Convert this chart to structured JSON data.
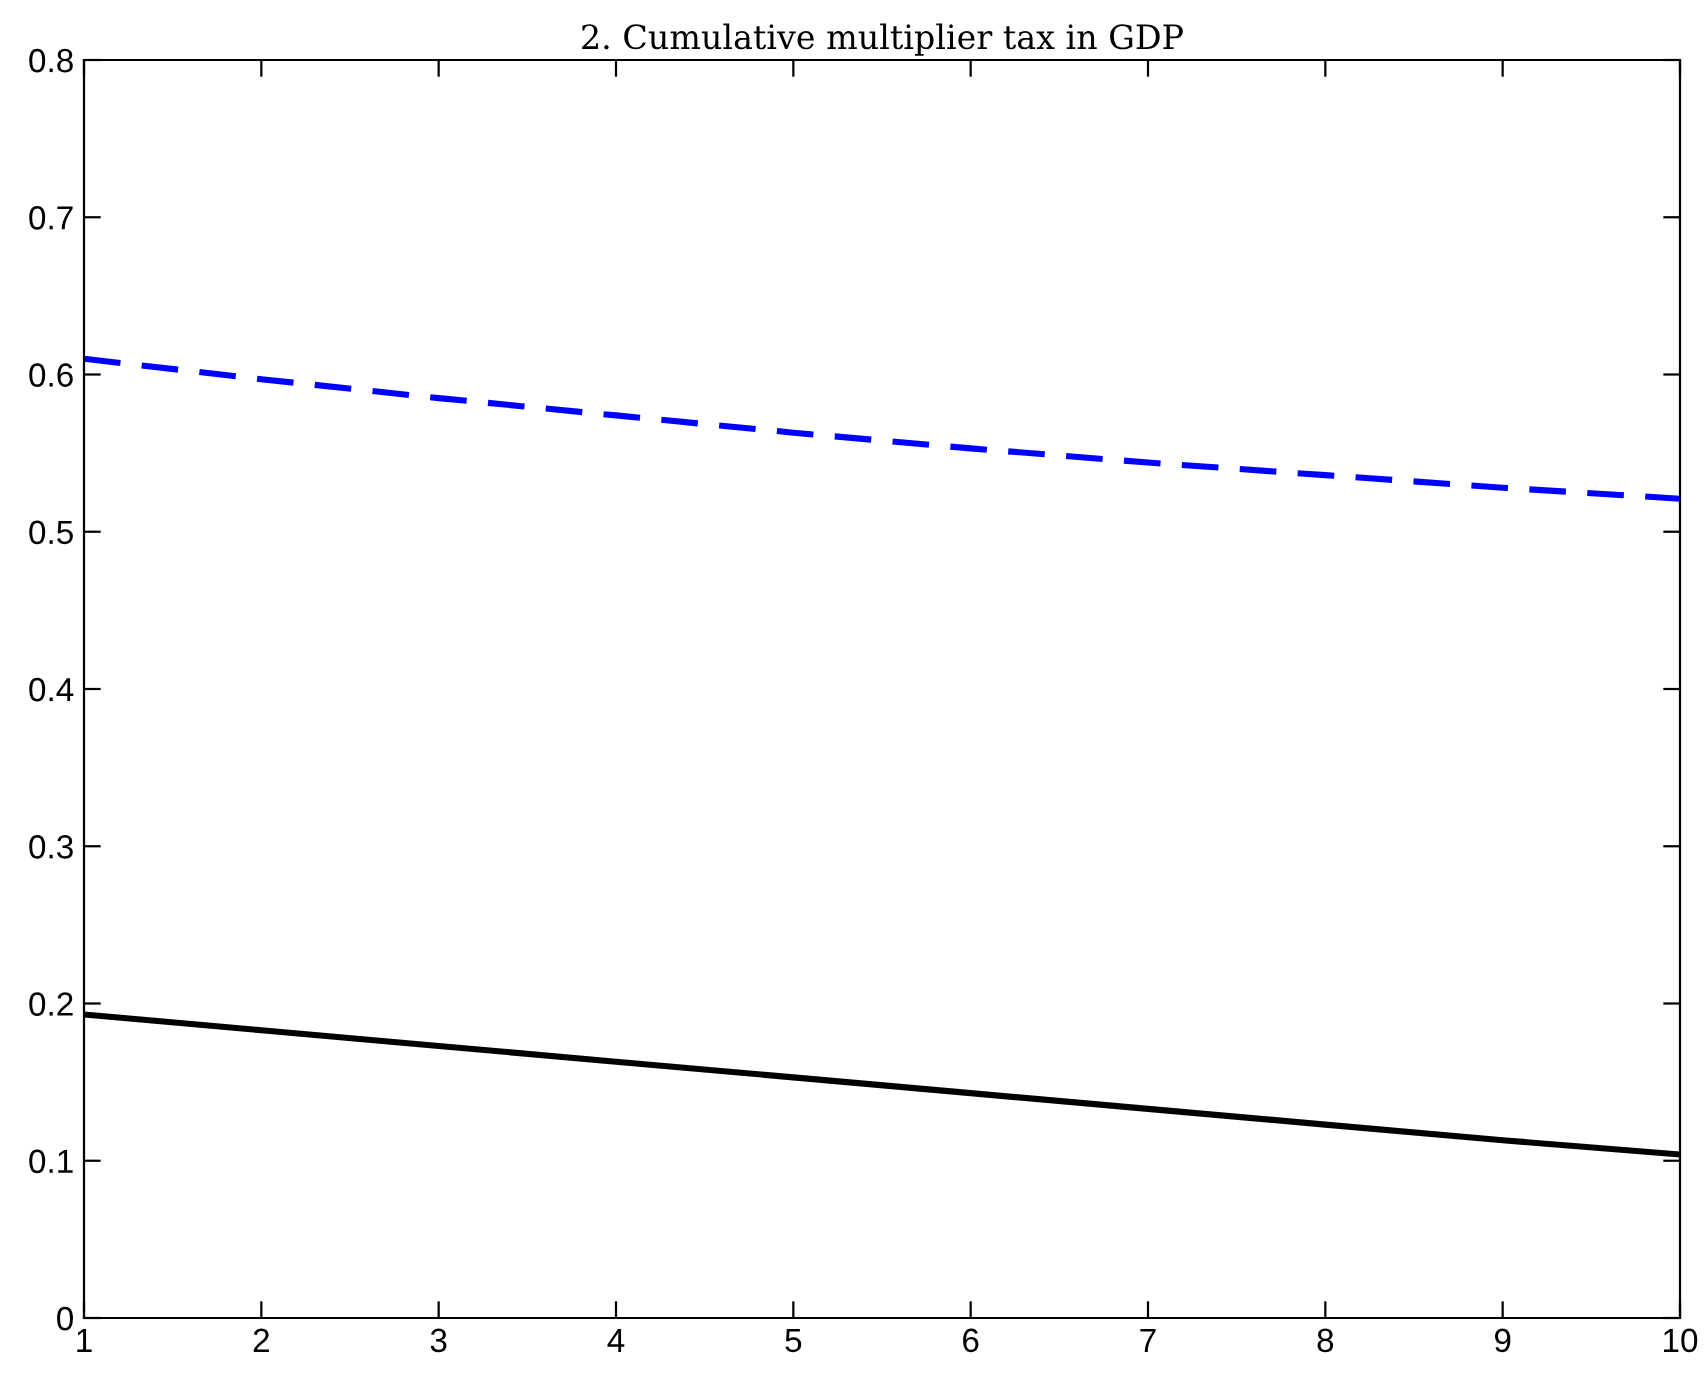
{
  "chart_data": {
    "type": "line",
    "title": "2. Cumulative multiplier tax in GDP",
    "x": [
      1,
      2,
      3,
      4,
      5,
      6,
      7,
      8,
      9,
      10
    ],
    "series": [
      {
        "color": "#0000ff",
        "line_style": "dashed",
        "values": [
          0.61,
          0.597,
          0.585,
          0.574,
          0.563,
          0.553,
          0.544,
          0.536,
          0.528,
          0.521
        ]
      },
      {
        "color": "#000000",
        "line_style": "solid",
        "values": [
          0.193,
          0.183,
          0.173,
          0.163,
          0.153,
          0.143,
          0.133,
          0.123,
          0.113,
          0.104
        ]
      }
    ],
    "xlim": [
      1,
      10
    ],
    "xticks": [
      1,
      2,
      3,
      4,
      5,
      6,
      7,
      8,
      9,
      10
    ],
    "ylim": [
      0,
      0.8
    ],
    "yticks": [
      0,
      0.1,
      0.2,
      0.3,
      0.4,
      0.5,
      0.6,
      0.7,
      0.8
    ],
    "grid": false,
    "legend": false,
    "marker": "none"
  }
}
